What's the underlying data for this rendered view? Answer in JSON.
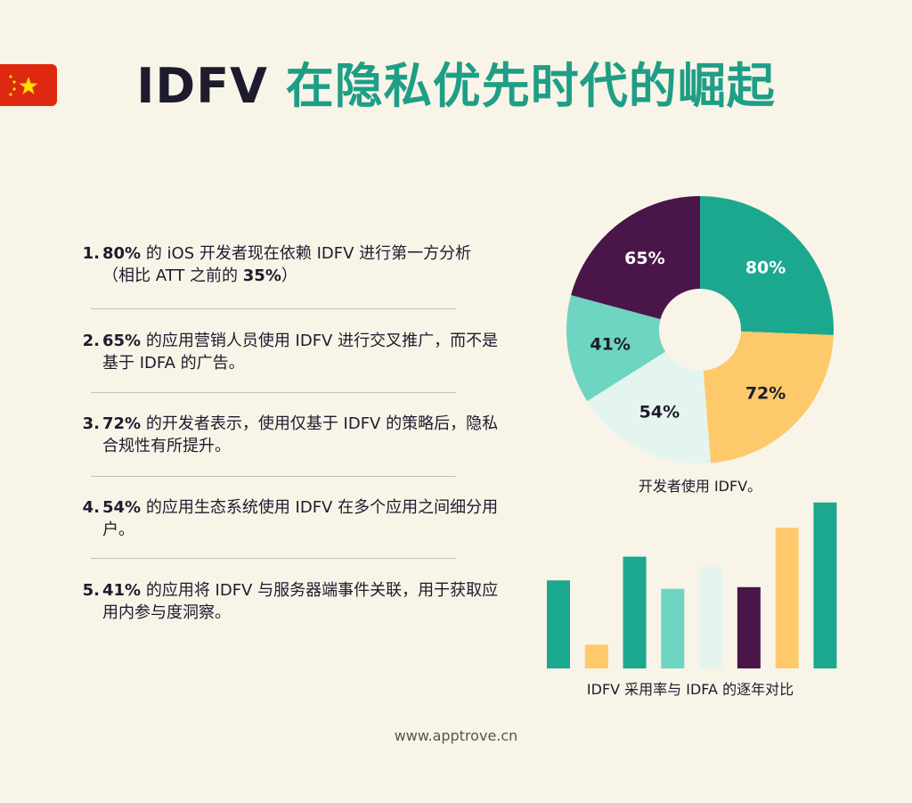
{
  "title": {
    "brand": "IDFV",
    "rest": "在隐私优先时代的崛起"
  },
  "colors": {
    "teal": "#1ba88e",
    "yellow": "#fdc96a",
    "purple": "#4a1548",
    "mint": "#6dd5c1",
    "pale": "#e4f5ef",
    "title_green": "#1f9e86",
    "flag_red": "#de2910",
    "flag_star": "#ffde00"
  },
  "items": [
    {
      "num": "1.",
      "lead": "80%",
      "text": " 的 iOS 开发者现在依赖 IDFV 进行第一方分析（相比 ATT 之前的 ",
      "tail": "35%",
      "end": "）"
    },
    {
      "num": "2.",
      "lead": "65%",
      "text": " 的应用营销人员使用 IDFV 进行交叉推广，而不是基于 IDFA 的广告。",
      "tail": "",
      "end": ""
    },
    {
      "num": "3.",
      "lead": "72%",
      "text": " 的开发者表示，使用仅基于 IDFV 的策略后，隐私合规性有所提升。",
      "tail": "",
      "end": ""
    },
    {
      "num": "4.",
      "lead": "54%",
      "text": " 的应用生态系统使用 IDFV 在多个应用之间细分用户。",
      "tail": "",
      "end": ""
    },
    {
      "num": "5.",
      "lead": "41%",
      "text": " 的应用将 IDFV 与服务器端事件关联，用于获取应用内参与度洞察。",
      "tail": "",
      "end": ""
    }
  ],
  "chart_data": [
    {
      "type": "pie",
      "caption": "开发者使用 IDFV。",
      "slices": [
        {
          "label": "80%",
          "value": 80,
          "color": "#1ba88e"
        },
        {
          "label": "72%",
          "value": 72,
          "color": "#fdc96a"
        },
        {
          "label": "54%",
          "value": 54,
          "color": "#e4f5ef"
        },
        {
          "label": "41%",
          "value": 41,
          "color": "#6dd5c1"
        },
        {
          "label": "65%",
          "value": 65,
          "color": "#4a1548"
        }
      ],
      "donut": true
    },
    {
      "type": "bar",
      "caption": "IDFV 采用率与 IDFA 的逐年对比",
      "values": [
        52,
        14,
        66,
        47,
        60,
        48,
        83,
        98
      ],
      "colors": [
        "#1ba88e",
        "#fdc96a",
        "#1ba88e",
        "#6dd5c1",
        "#e4f5ef",
        "#4a1548",
        "#fdc96a",
        "#1ba88e"
      ],
      "ylim": [
        0,
        100
      ]
    }
  ],
  "footer": "www.apptrove.cn"
}
